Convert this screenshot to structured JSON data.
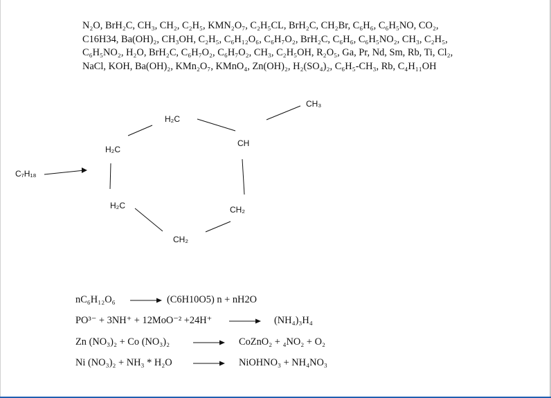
{
  "formula_list": {
    "line1": "N₂O, BrH₂C, CH₃, CH₂, C₂H₅, KMN₂O₇, C₂H₅CL, BrH₂C, CH₂Br, C₆H₆, C₆H₅NO, CO₂,",
    "line2": "C16H34, Ba(OH)₂, CH₃OH, C₂H₅, C₆H₁₂O₆, C₆H₇O₂, BrH₂C, C₆H₆, C₆H₅NO₂, CH₃, C₂H₅,",
    "line3": "C₆H₅NO₂, H₂O, BrH₂C, C₆H₇O₂, C₆H₇O₂, CH₃, C₂H₅OH, R₂O₅, Ga, Pr, Nd, Sm, Rb, Ti, Cl₂,",
    "line4": "NaCl, KOH, Ba(OH)₂, KMn₂O₇, KMnO₄, Zn(OH)₂, H₂(SO₄)₂, C₆H₅-CH₃, Rb, C₄H₁₁OH"
  },
  "molecule": {
    "pointer_label": "C₇H₁₈",
    "labels": {
      "ch3": "CH₃",
      "ch": "CH",
      "h2c_top": "H₂C",
      "h2c_left": "H₂C",
      "h2c_bottom": "H₂C",
      "ch2_right": "CH₂",
      "ch2_bottom": "CH₂"
    }
  },
  "reactions": [
    {
      "lhs": "nC₆H₁₂O₆",
      "rhs": "(C6H10O5) n + nH2O"
    },
    {
      "lhs": "PO³⁻ + 3NH⁺ + 12MoO⁻² +24H⁺",
      "rhs": "(NH₄)₃H₄"
    },
    {
      "lhs": "Zn (NO₃)₂ + Co (NO₃)₂",
      "rhs": "CoZnO₂ + ₄NO₂ + O₂"
    },
    {
      "lhs": "Ni (NO₃)₂ + NH₃ * H₂O",
      "rhs": "NiOHNO₃ + NH₄NO₃"
    }
  ],
  "colors": {
    "text": "#111111",
    "bond": "#111111",
    "page_edge": "#c8c8c8",
    "bottom_bar": "#1f5fb0"
  }
}
